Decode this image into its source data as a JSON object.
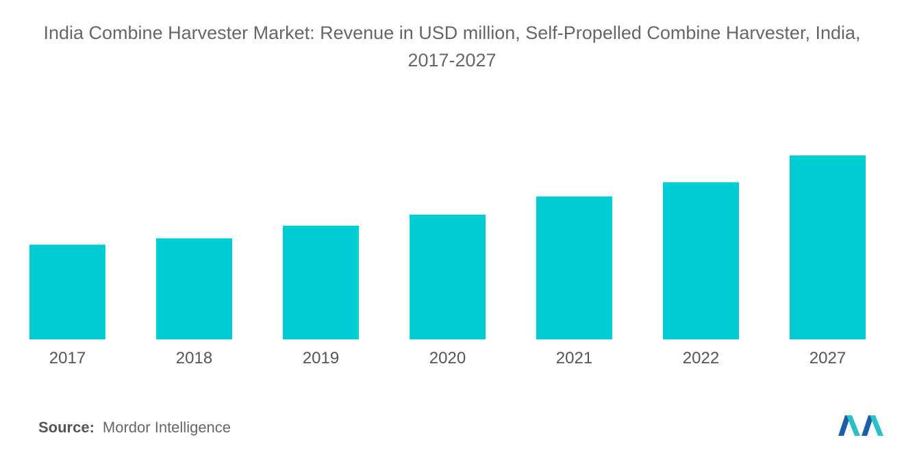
{
  "title": "India Combine Harvester Market: Revenue in USD million, Self-Propelled Combine Harvester, India, 2017-2027",
  "source": {
    "label": "Source:",
    "text": "Mordor Intelligence"
  },
  "logo": {
    "icon": "mordor-intelligence-logo",
    "colors": [
      "#1b5fa8",
      "#2bbfc9"
    ]
  },
  "colors": {
    "bar": "#00cdd1",
    "text": "#666666",
    "background": "#ffffff"
  },
  "chart_data": {
    "type": "bar",
    "title": "India Combine Harvester Market: Revenue in USD million, Self-Propelled Combine Harvester, India, 2017-2027",
    "categories": [
      "2017",
      "2018",
      "2019",
      "2020",
      "2021",
      "2022",
      "2027"
    ],
    "values": [
      120,
      128,
      144,
      158,
      181,
      199,
      233
    ],
    "ylim": [
      0,
      260
    ],
    "grid": false,
    "legend": "none"
  }
}
